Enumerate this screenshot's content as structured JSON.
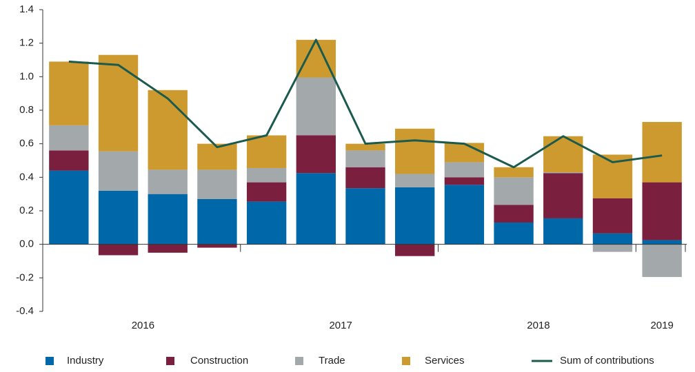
{
  "chart_data": {
    "type": "stacked_bar_line",
    "categories": [
      null,
      null,
      null,
      null,
      null,
      null,
      null,
      null,
      null,
      null,
      null,
      null,
      null
    ],
    "groups": [
      {
        "label": "2016",
        "count": 4
      },
      {
        "label": "2017",
        "count": 4
      },
      {
        "label": "2018",
        "count": 4
      },
      {
        "label": "2019",
        "count": 1
      }
    ],
    "series": [
      {
        "name": "Industry",
        "color": "#0067a8",
        "kind": "bar",
        "values": [
          0.44,
          0.32,
          0.3,
          0.27,
          0.255,
          0.425,
          0.335,
          0.34,
          0.355,
          0.13,
          0.155,
          0.065,
          0.025
        ]
      },
      {
        "name": "Construction",
        "color": "#7a1f3d",
        "kind": "bar",
        "values": [
          0.12,
          -0.065,
          -0.05,
          -0.02,
          0.115,
          0.225,
          0.125,
          -0.07,
          0.045,
          0.105,
          0.27,
          0.21,
          0.345
        ]
      },
      {
        "name": "Trade",
        "color": "#a3a8ab",
        "kind": "bar",
        "values": [
          0.15,
          0.235,
          0.145,
          0.175,
          0.085,
          0.345,
          0.1,
          0.08,
          0.09,
          0.165,
          0.005,
          -0.045,
          -0.195
        ]
      },
      {
        "name": "Services",
        "color": "#cc9a2f",
        "kind": "bar",
        "values": [
          0.38,
          0.575,
          0.475,
          0.155,
          0.195,
          0.225,
          0.04,
          0.27,
          0.115,
          0.06,
          0.215,
          0.26,
          0.36
        ]
      },
      {
        "name": "Sum of contributions",
        "color": "#1c5a4e",
        "kind": "line",
        "values": [
          1.09,
          1.07,
          0.87,
          0.58,
          0.65,
          1.22,
          0.6,
          0.62,
          0.6,
          0.46,
          0.645,
          0.49,
          0.53
        ]
      }
    ],
    "ylim": [
      -0.4,
      1.4
    ],
    "yticks": [
      -0.4,
      -0.2,
      {
        "value": 0,
        "label": "0.0"
      },
      0.2,
      0.4,
      0.6,
      0.8,
      {
        "value": 1,
        "label": "1.0"
      },
      1.2,
      1.4
    ]
  }
}
